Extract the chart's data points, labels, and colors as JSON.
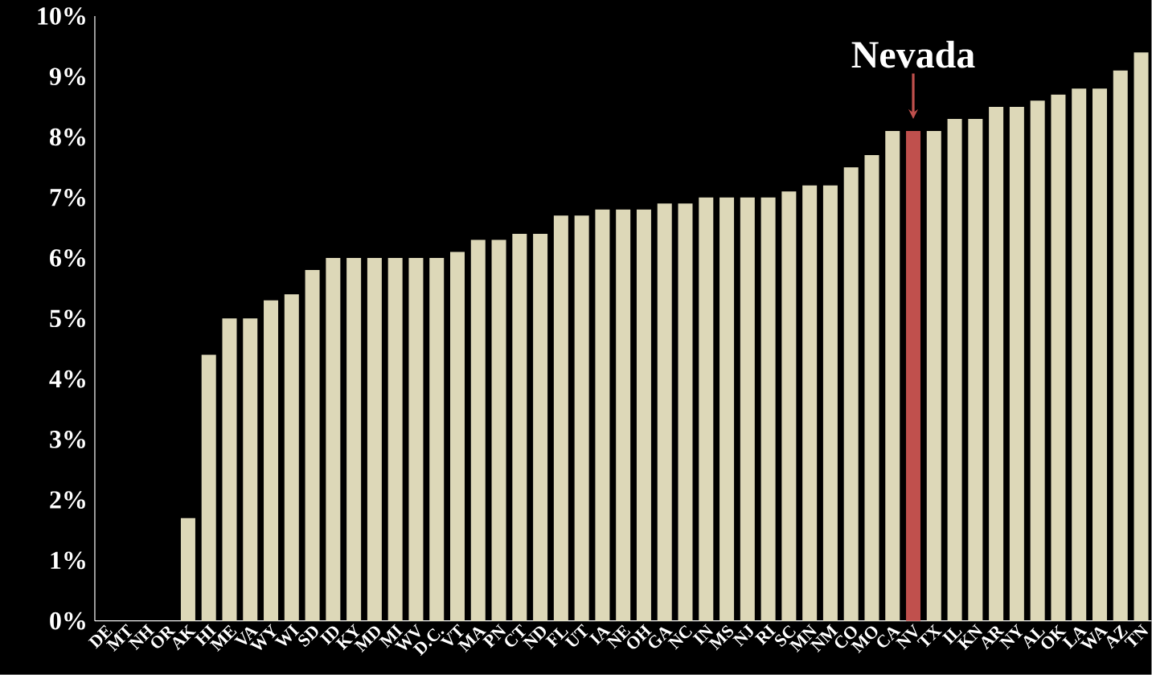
{
  "chart_data": {
    "type": "bar",
    "categories": [
      "DE",
      "MT",
      "NH",
      "OR",
      "AK",
      "HI",
      "ME",
      "VA",
      "WY",
      "WI",
      "SD",
      "ID",
      "KY",
      "MD",
      "MI",
      "WV",
      "D.C.",
      "VT",
      "MA",
      "PN",
      "CT",
      "ND",
      "FL",
      "UT",
      "IA",
      "NE",
      "OH",
      "GA",
      "NC",
      "IN",
      "MS",
      "NJ",
      "RI",
      "SC",
      "MN",
      "NM",
      "CO",
      "MO",
      "CA",
      "NV",
      "TX",
      "IL",
      "KN",
      "AR",
      "NY",
      "AL",
      "OK",
      "LA",
      "WA",
      "AZ",
      "TN"
    ],
    "values": [
      0,
      0,
      0,
      0,
      1.7,
      4.4,
      5.0,
      5.0,
      5.3,
      5.4,
      5.8,
      6,
      6,
      6,
      6,
      6,
      6,
      6.1,
      6.3,
      6.3,
      6.4,
      6.4,
      6.7,
      6.7,
      6.8,
      6.8,
      6.8,
      6.9,
      6.9,
      7,
      7,
      7,
      7,
      7.1,
      7.2,
      7.2,
      7.5,
      7.7,
      8.1,
      8.1,
      8.1,
      8.3,
      8.3,
      8.5,
      8.5,
      8.6,
      8.7,
      8.8,
      8.8,
      9.1,
      9.4
    ],
    "colors": [
      "#ddd8b8",
      "#ddd8b8",
      "#ddd8b8",
      "#ddd8b8",
      "#ddd8b8",
      "#ddd8b8",
      "#ddd8b8",
      "#ddd8b8",
      "#ddd8b8",
      "#ddd8b8",
      "#ddd8b8",
      "#ddd8b8",
      "#ddd8b8",
      "#ddd8b8",
      "#ddd8b8",
      "#ddd8b8",
      "#ddd8b8",
      "#ddd8b8",
      "#ddd8b8",
      "#ddd8b8",
      "#ddd8b8",
      "#ddd8b8",
      "#ddd8b8",
      "#ddd8b8",
      "#ddd8b8",
      "#ddd8b8",
      "#ddd8b8",
      "#ddd8b8",
      "#ddd8b8",
      "#ddd8b8",
      "#ddd8b8",
      "#ddd8b8",
      "#ddd8b8",
      "#ddd8b8",
      "#ddd8b8",
      "#ddd8b8",
      "#ddd8b8",
      "#ddd8b8",
      "#ddd8b8",
      "#c0504d",
      "#ddd8b8",
      "#ddd8b8",
      "#ddd8b8",
      "#ddd8b8",
      "#ddd8b8",
      "#ddd8b8",
      "#ddd8b8",
      "#ddd8b8",
      "#ddd8b8",
      "#ddd8b8",
      "#ddd8b8"
    ],
    "ylim": [
      0,
      10
    ],
    "yticks": [
      {
        "value": 0,
        "label": "0%"
      },
      {
        "value": 1,
        "label": "1%"
      },
      {
        "value": 2,
        "label": "2%"
      },
      {
        "value": 3,
        "label": "3%"
      },
      {
        "value": 4,
        "label": "4%"
      },
      {
        "value": 5,
        "label": "5%"
      },
      {
        "value": 6,
        "label": "6%"
      },
      {
        "value": 7,
        "label": "7%"
      },
      {
        "value": 8,
        "label": "8%"
      },
      {
        "value": 9,
        "label": "9%"
      },
      {
        "value": 10,
        "label": "10%"
      }
    ],
    "annotations": [
      {
        "text": "Nevada",
        "x": "NV",
        "y": 8.1
      }
    ]
  }
}
